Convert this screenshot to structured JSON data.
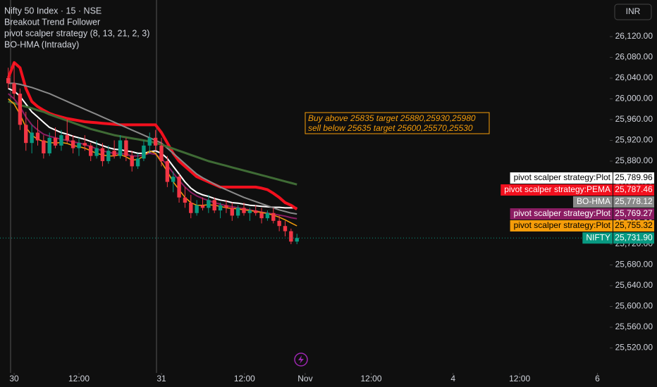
{
  "chart_data": {
    "type": "candlestick",
    "title": "Nifty 50 Index · 15 · NSE",
    "indicators": [
      "Breakout Trend Follower",
      "pivot scalper strategy (8, 13, 21, 2, 3)",
      "BO-HMA (Intraday)"
    ],
    "currency": "INR",
    "annotations": [
      "Buy above 25835 target 25880,25930,25980",
      "sell below 25635 target 25600,25570,25530"
    ],
    "x": [
      -1,
      0,
      1,
      2,
      3,
      4,
      5,
      6,
      7,
      8,
      9,
      10,
      11,
      12,
      13,
      14,
      15,
      16,
      17,
      18,
      19,
      20,
      21,
      22,
      23,
      24,
      25,
      26,
      27,
      28,
      29,
      30,
      31,
      32,
      33,
      34,
      35,
      36,
      37,
      38,
      39,
      40,
      41,
      42,
      43,
      44,
      45,
      46,
      47,
      48
    ],
    "xlim": [
      -2.4,
      101.1
    ],
    "xticks": [
      {
        "value": 0,
        "label": "30"
      },
      {
        "value": 11,
        "label": "12:00"
      },
      {
        "value": 25,
        "label": "31"
      },
      {
        "value": 39.1,
        "label": "12:00"
      },
      {
        "value": 49.4,
        "label": "Nov"
      },
      {
        "value": 60.6,
        "label": "12:00"
      },
      {
        "value": 74.5,
        "label": "4"
      },
      {
        "value": 85.8,
        "label": "12:00"
      },
      {
        "value": 99,
        "label": "6"
      }
    ],
    "ylim": [
      25471.9,
      26190.5
    ],
    "yticks": [
      {
        "value": 26120,
        "label": "26,120.00"
      },
      {
        "value": 26080,
        "label": "26,080.00"
      },
      {
        "value": 26040,
        "label": "26,040.00"
      },
      {
        "value": 26000,
        "label": "26,000.00"
      },
      {
        "value": 25960,
        "label": "25,960.00"
      },
      {
        "value": 25920,
        "label": "25,920.00"
      },
      {
        "value": 25880,
        "label": "25,880.00"
      },
      {
        "value": 25840,
        "label": "25,840.00"
      },
      {
        "value": 25800,
        "label": "25,800.00"
      },
      {
        "value": 25760,
        "label": "25,760.00"
      },
      {
        "value": 25720,
        "label": "25,720.00"
      },
      {
        "value": 25680,
        "label": "25,680.00"
      },
      {
        "value": 25640,
        "label": "25,640.00"
      },
      {
        "value": 25600,
        "label": "25,600.00"
      },
      {
        "value": 25560,
        "label": "25,560.00"
      },
      {
        "value": 25520,
        "label": "25,520.00"
      }
    ],
    "candles": {
      "name": "NIFTY",
      "up_color": "#089981",
      "down_color": "#f23645",
      "open": [
        26040,
        26030,
        26010,
        25950,
        25915,
        25935,
        25920,
        25895,
        25925,
        25910,
        25930,
        25920,
        25905,
        25915,
        25910,
        25890,
        25905,
        25880,
        25900,
        25890,
        25920,
        25890,
        25870,
        25885,
        25910,
        25925,
        25910,
        25880,
        25840,
        25850,
        25810,
        25800,
        25780,
        25795,
        25790,
        25805,
        25785,
        25795,
        25790,
        25775,
        25790,
        25780,
        25785,
        25780,
        25770,
        25780,
        25765,
        25755,
        25745,
        25725
      ],
      "high": [
        26060,
        26070,
        26020,
        25975,
        25950,
        25960,
        25930,
        25935,
        25945,
        25940,
        25960,
        25930,
        25925,
        25930,
        25915,
        25920,
        25915,
        25910,
        25920,
        25930,
        25925,
        25900,
        25895,
        25920,
        25935,
        25940,
        25925,
        25890,
        25860,
        25855,
        25830,
        25815,
        25805,
        25810,
        25815,
        25810,
        25800,
        25805,
        25800,
        25795,
        25800,
        25790,
        25795,
        25790,
        25785,
        25790,
        25775,
        25765,
        25750,
        25740
      ],
      "low": [
        26020,
        26000,
        25940,
        25900,
        25895,
        25910,
        25885,
        25890,
        25905,
        25900,
        25915,
        25895,
        25890,
        25900,
        25880,
        25885,
        25870,
        25875,
        25885,
        25885,
        25880,
        25860,
        25865,
        25880,
        25895,
        25900,
        25870,
        25830,
        25820,
        25800,
        25790,
        25770,
        25775,
        25785,
        25780,
        25780,
        25770,
        25780,
        25765,
        25770,
        25775,
        25765,
        25775,
        25760,
        25765,
        25760,
        25745,
        25735,
        25720,
        25720
      ],
      "close": [
        26030,
        26010,
        25950,
        25915,
        25935,
        25920,
        25895,
        25925,
        25910,
        25930,
        25920,
        25905,
        25915,
        25910,
        25890,
        25905,
        25880,
        25900,
        25890,
        25920,
        25890,
        25870,
        25885,
        25910,
        25925,
        25910,
        25880,
        25840,
        25850,
        25810,
        25800,
        25780,
        25795,
        25790,
        25805,
        25785,
        25795,
        25790,
        25775,
        25790,
        25780,
        25785,
        25780,
        25770,
        25780,
        25765,
        25755,
        25745,
        25725,
        25731.9
      ],
      "value_labels": [
        null,
        null,
        null,
        null,
        null,
        null,
        null,
        null,
        null,
        null,
        null,
        null,
        null,
        null,
        null,
        null,
        null,
        null,
        null,
        null,
        null,
        null,
        null,
        null,
        null,
        null,
        null,
        null,
        null,
        null,
        null,
        null,
        null,
        null,
        null,
        null,
        null,
        null,
        null,
        null,
        null,
        null,
        null,
        null,
        null,
        null,
        null,
        null,
        null,
        "25,731.90"
      ],
      "label_color": "#089981"
    },
    "series": [
      {
        "name": "pivot scalper strategy:Plot",
        "color": "#ffffff",
        "label_text": "#000000",
        "width": 2,
        "values": [
          26020,
          26015,
          26005,
          25990,
          25975,
          25965,
          25955,
          25945,
          25940,
          25935,
          25932,
          25928,
          25925,
          25922,
          25918,
          25914,
          25910,
          25906,
          25903,
          25902,
          25900,
          25898,
          25895,
          25895,
          25898,
          25900,
          25895,
          25885,
          25870,
          25855,
          25840,
          25828,
          25820,
          25815,
          25812,
          25808,
          25805,
          25803,
          25800,
          25799,
          25797,
          25795,
          25794,
          25793,
          25792,
          25791,
          25791,
          25790,
          25790,
          25789.96
        ],
        "value_labels": [
          null,
          null,
          null,
          null,
          null,
          null,
          null,
          null,
          null,
          null,
          null,
          null,
          null,
          null,
          null,
          null,
          null,
          null,
          null,
          null,
          null,
          null,
          null,
          null,
          null,
          null,
          null,
          null,
          null,
          null,
          null,
          null,
          null,
          null,
          null,
          null,
          null,
          null,
          null,
          null,
          null,
          null,
          null,
          null,
          null,
          null,
          null,
          null,
          null,
          "25,789.96"
        ]
      },
      {
        "name": "pivot scalper strategy:PEMA",
        "color": "#f2101e",
        "label_text": "#ffffff",
        "width": 4,
        "values": [
          26040,
          26070,
          26060,
          26020,
          25995,
          25985,
          25978,
          25972,
          25968,
          25965,
          25962,
          25960,
          25958,
          25956,
          25955,
          25954,
          25953,
          25952,
          25951,
          25950,
          25950,
          25950,
          25950,
          25950,
          25950,
          25950,
          25935,
          25915,
          25895,
          25880,
          25870,
          25860,
          25850,
          25845,
          25840,
          25835,
          25830,
          25830,
          25830,
          25830,
          25830,
          25830,
          25830,
          25828,
          25825,
          25818,
          25810,
          25800,
          25795,
          25787.46
        ],
        "value_labels": [
          null,
          null,
          null,
          null,
          null,
          null,
          null,
          null,
          null,
          null,
          null,
          null,
          null,
          null,
          null,
          null,
          null,
          null,
          null,
          null,
          null,
          null,
          null,
          null,
          null,
          null,
          null,
          null,
          null,
          null,
          null,
          null,
          null,
          null,
          null,
          null,
          null,
          null,
          null,
          null,
          null,
          null,
          null,
          null,
          null,
          null,
          null,
          null,
          null,
          "25,787.46"
        ]
      },
      {
        "name": "BO-HMA",
        "color": "#8a8a8a",
        "label_text": "#ffffff",
        "width": 2,
        "values": [
          26030,
          26030,
          26028,
          26025,
          26022,
          26018,
          26014,
          26010,
          26005,
          26000,
          25995,
          25990,
          25985,
          25980,
          25975,
          25970,
          25965,
          25960,
          25955,
          25950,
          25945,
          25940,
          25935,
          25930,
          25925,
          25920,
          25915,
          25905,
          25895,
          25885,
          25875,
          25865,
          25855,
          25848,
          25842,
          25836,
          25830,
          25825,
          25820,
          25815,
          25810,
          25806,
          25802,
          25798,
          25794,
          25790,
          25786,
          25783,
          25780,
          25778.12
        ],
        "value_labels": [
          null,
          null,
          null,
          null,
          null,
          null,
          null,
          null,
          null,
          null,
          null,
          null,
          null,
          null,
          null,
          null,
          null,
          null,
          null,
          null,
          null,
          null,
          null,
          null,
          null,
          null,
          null,
          null,
          null,
          null,
          null,
          null,
          null,
          null,
          null,
          null,
          null,
          null,
          null,
          null,
          null,
          null,
          null,
          null,
          null,
          null,
          null,
          null,
          null,
          "25,778.12"
        ]
      },
      {
        "color": "#3f6b35",
        "width": 3,
        "values": [
          25995,
          25992,
          25988,
          25985,
          25982,
          25978,
          25975,
          25970,
          25966,
          25962,
          25958,
          25954,
          25950,
          25946,
          25942,
          25939,
          25936,
          25933,
          25930,
          25928,
          25926,
          25924,
          25922,
          25920,
          25918,
          25915,
          25912,
          25908,
          25904,
          25900,
          25896,
          25892,
          25888,
          25884,
          25880,
          25877,
          25874,
          25871,
          25868,
          25865,
          25862,
          25859,
          25856,
          25853,
          25850,
          25847,
          25844,
          25841,
          25838,
          25835
        ]
      },
      {
        "name": "pivot scalper strategy:Plot",
        "color": "#8c1d63",
        "label_text": "#ffffff",
        "width": 2,
        "values": [
          26010,
          26000,
          25985,
          25965,
          25950,
          25940,
          25932,
          25928,
          25925,
          25922,
          25920,
          25917,
          25915,
          25912,
          25908,
          25904,
          25900,
          25897,
          25895,
          25895,
          25893,
          25890,
          25890,
          25892,
          25895,
          25893,
          25885,
          25872,
          25857,
          25843,
          25830,
          25820,
          25813,
          25808,
          25804,
          25800,
          25797,
          25794,
          25792,
          25790,
          25788,
          25786,
          25784,
          25782,
          25780,
          25778,
          25776,
          25774,
          25771,
          25769.27
        ],
        "value_labels": [
          null,
          null,
          null,
          null,
          null,
          null,
          null,
          null,
          null,
          null,
          null,
          null,
          null,
          null,
          null,
          null,
          null,
          null,
          null,
          null,
          null,
          null,
          null,
          null,
          null,
          null,
          null,
          null,
          null,
          null,
          null,
          null,
          null,
          null,
          null,
          null,
          null,
          null,
          null,
          null,
          null,
          null,
          null,
          null,
          null,
          null,
          null,
          null,
          null,
          "25,769.27"
        ]
      },
      {
        "name": "pivot scalper strategy:Plot",
        "color": "#f59d0a",
        "label_text": "#000000",
        "width": 1.5,
        "values": [
          26000,
          25990,
          25970,
          25945,
          25930,
          25922,
          25918,
          25916,
          25915,
          25916,
          25914,
          25910,
          25908,
          25905,
          25900,
          25895,
          25892,
          25890,
          25890,
          25893,
          25888,
          25882,
          25883,
          25890,
          25900,
          25895,
          25878,
          25860,
          25840,
          25825,
          25810,
          25800,
          25795,
          25795,
          25796,
          25795,
          25793,
          25790,
          25789,
          25788,
          25786,
          25785,
          25783,
          25781,
          25779,
          25776,
          25772,
          25767,
          25761,
          25755.32
        ],
        "value_labels": [
          null,
          null,
          null,
          null,
          null,
          null,
          null,
          null,
          null,
          null,
          null,
          null,
          null,
          null,
          null,
          null,
          null,
          null,
          null,
          null,
          null,
          null,
          null,
          null,
          null,
          null,
          null,
          null,
          null,
          null,
          null,
          null,
          null,
          null,
          null,
          null,
          null,
          null,
          null,
          null,
          null,
          null,
          null,
          null,
          null,
          null,
          null,
          null,
          null,
          "25,755.32"
        ]
      }
    ]
  }
}
